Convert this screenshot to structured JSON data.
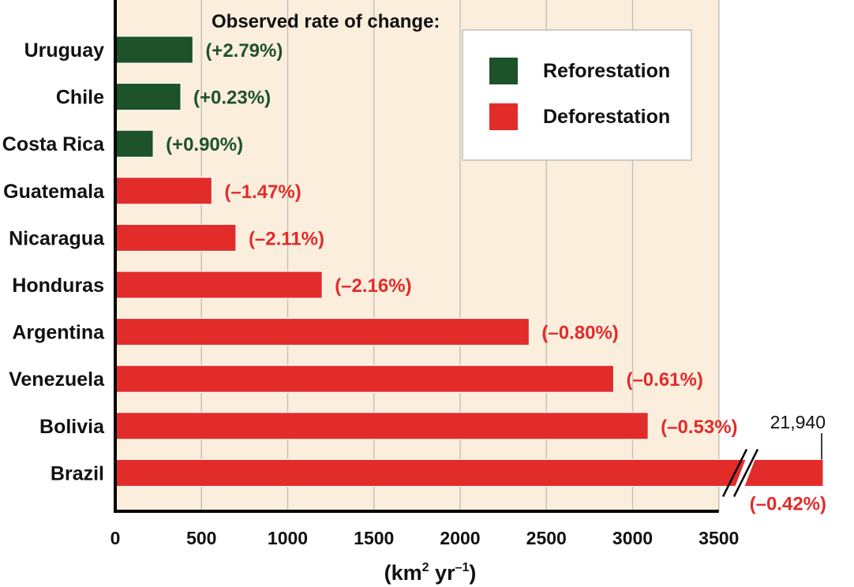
{
  "chart_data": {
    "type": "bar",
    "orientation": "horizontal",
    "annotation_title": "Observed rate of change:",
    "xlabel_main": "(km",
    "xlabel_sup1": "2",
    "xlabel_mid": " yr",
    "xlabel_sup2": "–1",
    "xlabel_end": ")",
    "xlim": [
      0,
      3500
    ],
    "xticks": [
      "0",
      "500",
      "1000",
      "1500",
      "2000",
      "2500",
      "3000",
      "3500"
    ],
    "grid": "vertical",
    "axis_break": true,
    "categories": [
      "Uruguay",
      "Chile",
      "Costa Rica",
      "Guatemala",
      "Nicaragua",
      "Honduras",
      "Argentina",
      "Venezuela",
      "Bolivia",
      "Brazil"
    ],
    "values": [
      450,
      380,
      220,
      560,
      700,
      1200,
      2400,
      2890,
      3090,
      21940
    ],
    "rate_labels": [
      "(+2.79%)",
      "(+0.23%)",
      "(+0.90%)",
      "(–1.47%)",
      "(–2.11%)",
      "(–2.16%)",
      "(–0.80%)",
      "(–0.61%)",
      "(–0.53%)",
      "(–0.42%)"
    ],
    "types": [
      "reforestation",
      "reforestation",
      "reforestation",
      "deforestation",
      "deforestation",
      "deforestation",
      "deforestation",
      "deforestation",
      "deforestation",
      "deforestation"
    ],
    "broken_bar_value_label": "21,940",
    "legend": {
      "placement": "top-right",
      "entries": [
        {
          "key": "reforestation",
          "label": "Reforestation",
          "color": "#1e5229"
        },
        {
          "key": "deforestation",
          "label": "Deforestation",
          "color": "#e22c2a"
        }
      ]
    },
    "colors": {
      "plot_background": "#fbeedd",
      "gridline": "#c8c2b8"
    }
  }
}
